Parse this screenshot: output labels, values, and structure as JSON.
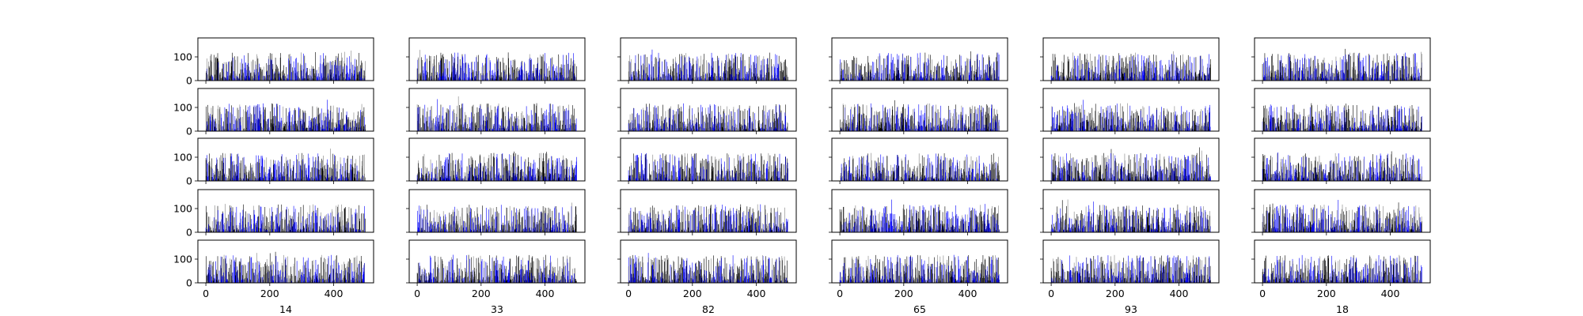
{
  "figure": {
    "columns": [
      "14",
      "33",
      "82",
      "65",
      "93",
      "18"
    ],
    "rows": 5
  },
  "chart_data": {
    "type": "bar",
    "layout": "grid of 5 rows x 6 columns of small bar panels (shared axes)",
    "xlim": [
      -25,
      525
    ],
    "ylim": [
      0,
      180
    ],
    "xticks": [
      0,
      200,
      400
    ],
    "yticks": [
      0,
      100
    ],
    "grid": false,
    "colors": [
      "#000000",
      "#0000ff",
      "#808080"
    ],
    "bars_per_panel": 500,
    "xlabels": [
      "14",
      "33",
      "82",
      "65",
      "93",
      "18"
    ]
  }
}
